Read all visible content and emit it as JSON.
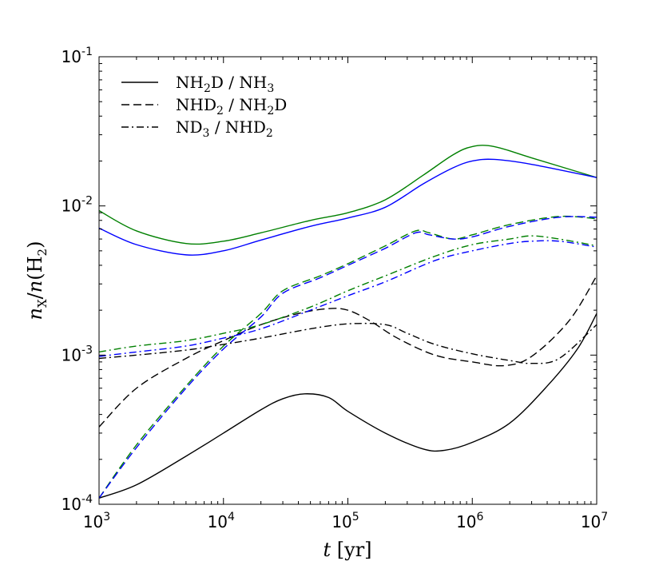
{
  "chart_data": {
    "type": "line",
    "xscale": "log",
    "yscale": "log",
    "xlim": [
      1000,
      10000000
    ],
    "ylim": [
      0.0001,
      0.1
    ],
    "xlabel": {
      "italic": "t",
      "rest": "[yr]"
    },
    "ylabel": {
      "n1": "n",
      "sub1": "X",
      "slash": "/",
      "n2": "n",
      "paren_open": "(H",
      "sub2": "2",
      "paren_close": ")"
    },
    "x_ticks": [
      {
        "base": "10",
        "exp": "3",
        "value": 1000
      },
      {
        "base": "10",
        "exp": "4",
        "value": 10000
      },
      {
        "base": "10",
        "exp": "5",
        "value": 100000
      },
      {
        "base": "10",
        "exp": "6",
        "value": 1000000
      },
      {
        "base": "10",
        "exp": "7",
        "value": 10000000
      }
    ],
    "y_ticks": [
      {
        "base": "10",
        "exp": "-4",
        "value": 0.0001
      },
      {
        "base": "10",
        "exp": "-3",
        "value": 0.001
      },
      {
        "base": "10",
        "exp": "-2",
        "value": 0.01
      },
      {
        "base": "10",
        "exp": "-1",
        "value": 0.1
      }
    ],
    "legend": {
      "placement": "top-left",
      "entries": [
        {
          "style": "solid",
          "parts": [
            [
              "NH",
              ""
            ],
            [
              "2",
              "sub"
            ],
            [
              "D / NH",
              ""
            ],
            [
              "3",
              "sub"
            ]
          ]
        },
        {
          "style": "dashed",
          "parts": [
            [
              "NHD",
              ""
            ],
            [
              "2",
              "sub"
            ],
            [
              " / NH",
              ""
            ],
            [
              "2",
              "sub"
            ],
            [
              "D",
              ""
            ]
          ]
        },
        {
          "style": "dashdot",
          "parts": [
            [
              "ND",
              ""
            ],
            [
              "3",
              "sub"
            ],
            [
              " / NHD",
              ""
            ],
            [
              "2",
              "sub"
            ]
          ]
        }
      ]
    },
    "series": [
      {
        "name": "NH2D / NH3 (black)",
        "color": "#000000",
        "style": "solid",
        "x": [
          1000,
          2000,
          5000,
          10000,
          20000,
          30000,
          45000,
          70000,
          100000,
          200000,
          400000,
          600000,
          1000000,
          2000000,
          4000000,
          7000000,
          10000000
        ],
        "y": [
          0.00011,
          0.000135,
          0.00021,
          0.0003,
          0.00043,
          0.00051,
          0.00055,
          0.00052,
          0.00042,
          0.0003,
          0.000235,
          0.00023,
          0.00026,
          0.00035,
          0.00062,
          0.0011,
          0.0019
        ]
      },
      {
        "name": "NH2D / NH3 (green)",
        "color": "#008000",
        "style": "solid",
        "x": [
          1000,
          2000,
          5000,
          10000,
          20000,
          50000,
          100000,
          200000,
          400000,
          700000,
          1000000,
          1500000,
          3000000,
          10000000
        ],
        "y": [
          0.0093,
          0.0068,
          0.0056,
          0.0058,
          0.0066,
          0.008,
          0.009,
          0.011,
          0.016,
          0.022,
          0.025,
          0.025,
          0.021,
          0.0155
        ]
      },
      {
        "name": "NH2D / NH3 (blue)",
        "color": "#0000ff",
        "style": "solid",
        "x": [
          1000,
          2000,
          5000,
          10000,
          20000,
          50000,
          100000,
          200000,
          400000,
          700000,
          1000000,
          1500000,
          3000000,
          10000000
        ],
        "y": [
          0.0071,
          0.0055,
          0.0047,
          0.005,
          0.0059,
          0.0073,
          0.0083,
          0.0098,
          0.014,
          0.018,
          0.02,
          0.0205,
          0.019,
          0.0155
        ]
      },
      {
        "name": "NHD2 / NH2D (black)",
        "color": "#000000",
        "style": "dashed",
        "x": [
          1000,
          2000,
          5000,
          10000,
          20000,
          40000,
          70000,
          100000,
          150000,
          250000,
          500000,
          1000000,
          1800000,
          3000000,
          6000000,
          10000000
        ],
        "y": [
          0.00033,
          0.0006,
          0.00095,
          0.00125,
          0.0016,
          0.0019,
          0.00205,
          0.002,
          0.0017,
          0.0013,
          0.001,
          0.0009,
          0.00085,
          0.00098,
          0.0017,
          0.0034
        ]
      },
      {
        "name": "NHD2 / NH2D (green)",
        "color": "#008000",
        "style": "dashed",
        "x": [
          1000,
          2000,
          5000,
          10000,
          20000,
          30000,
          60000,
          100000,
          200000,
          350000,
          450000,
          700000,
          1000000,
          2000000,
          5000000,
          10000000
        ],
        "y": [
          0.00011,
          0.00025,
          0.00062,
          0.00115,
          0.0019,
          0.0027,
          0.0034,
          0.0041,
          0.0054,
          0.0068,
          0.0066,
          0.006,
          0.0064,
          0.0075,
          0.0085,
          0.0082
        ]
      },
      {
        "name": "NHD2 / NH2D (blue)",
        "color": "#0000ff",
        "style": "dashed",
        "x": [
          1000,
          2000,
          5000,
          10000,
          20000,
          30000,
          60000,
          100000,
          200000,
          350000,
          450000,
          700000,
          1000000,
          2000000,
          5000000,
          10000000
        ],
        "y": [
          0.00011,
          0.00024,
          0.0006,
          0.0011,
          0.0018,
          0.0026,
          0.0033,
          0.004,
          0.0052,
          0.0066,
          0.0064,
          0.006,
          0.0062,
          0.0073,
          0.0084,
          0.0084
        ]
      },
      {
        "name": "ND3 / NHD2 (black)",
        "color": "#000000",
        "style": "dashdot",
        "x": [
          1000,
          2000,
          5000,
          10000,
          20000,
          50000,
          100000,
          200000,
          300000,
          500000,
          1000000,
          2000000,
          3000000,
          5000000,
          10000000
        ],
        "y": [
          0.00095,
          0.001,
          0.00108,
          0.00118,
          0.0013,
          0.0015,
          0.00162,
          0.0016,
          0.0014,
          0.00118,
          0.00102,
          0.00092,
          0.00088,
          0.00095,
          0.0016
        ]
      },
      {
        "name": "ND3 / NHD2 (green)",
        "color": "#008000",
        "style": "dashdot",
        "x": [
          1000,
          2000,
          5000,
          10000,
          20000,
          50000,
          100000,
          200000,
          500000,
          1000000,
          2000000,
          3000000,
          5000000,
          10000000
        ],
        "y": [
          0.00105,
          0.00115,
          0.00125,
          0.0014,
          0.0016,
          0.0021,
          0.0027,
          0.0034,
          0.0046,
          0.0055,
          0.006,
          0.0063,
          0.006,
          0.0054
        ]
      },
      {
        "name": "ND3 / NHD2 (blue)",
        "color": "#0000ff",
        "style": "dashdot",
        "x": [
          1000,
          2000,
          5000,
          10000,
          20000,
          50000,
          100000,
          200000,
          500000,
          1000000,
          2000000,
          3000000,
          5000000,
          10000000
        ],
        "y": [
          0.00098,
          0.00105,
          0.00115,
          0.0013,
          0.0015,
          0.002,
          0.0025,
          0.0031,
          0.0043,
          0.005,
          0.0056,
          0.0058,
          0.0058,
          0.0053
        ]
      }
    ]
  }
}
